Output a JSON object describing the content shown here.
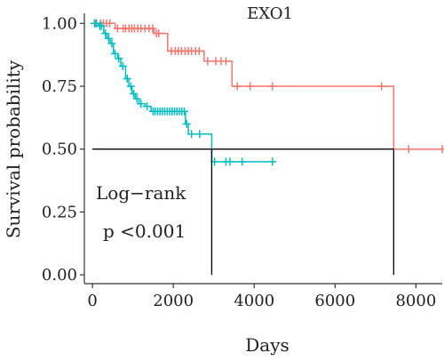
{
  "chart_data": {
    "type": "line",
    "title": "EXO1",
    "xlabel": "Days",
    "ylabel": "Survival probability",
    "xlim": [
      -200,
      8650
    ],
    "ylim": [
      -0.035,
      1.04
    ],
    "x_ticks": [
      0,
      2000,
      4000,
      6000,
      8000
    ],
    "x_tick_labels": [
      "0",
      "2000",
      "4000",
      "6000",
      "8000"
    ],
    "y_ticks": [
      0,
      0.25,
      0.5,
      0.75,
      1.0
    ],
    "y_tick_labels": [
      "0.00",
      "0.25",
      "0.50",
      "0.75",
      "1.00"
    ],
    "grid": false,
    "annotations": [
      "Log−rank",
      "p <0.001"
    ],
    "median_line": {
      "y": 0.5,
      "x_start": 0,
      "median_x": [
        2950,
        7450
      ]
    },
    "series": [
      {
        "color": "#F8766D",
        "steps": [
          [
            0,
            1.0
          ],
          [
            560,
            0.98
          ],
          [
            1520,
            0.96
          ],
          [
            1860,
            0.89
          ],
          [
            2760,
            0.85
          ],
          [
            3450,
            0.75
          ],
          [
            7450,
            0.5
          ]
        ],
        "censor_x": [
          80,
          200,
          270,
          350,
          430,
          620,
          760,
          820,
          900,
          970,
          1040,
          1120,
          1200,
          1300,
          1400,
          1490,
          1580,
          1640,
          1950,
          2050,
          2120,
          2200,
          2290,
          2370,
          2450,
          2550,
          2640,
          2850,
          3050,
          3180,
          3300,
          3580,
          3900,
          4450,
          7150,
          7820,
          8650
        ]
      },
      {
        "color": "#00BFC4",
        "steps": [
          [
            0,
            1.0
          ],
          [
            150,
            0.99
          ],
          [
            280,
            0.96
          ],
          [
            360,
            0.94
          ],
          [
            440,
            0.92
          ],
          [
            520,
            0.88
          ],
          [
            620,
            0.86
          ],
          [
            700,
            0.83
          ],
          [
            820,
            0.78
          ],
          [
            900,
            0.75
          ],
          [
            980,
            0.72
          ],
          [
            1060,
            0.7
          ],
          [
            1150,
            0.68
          ],
          [
            1300,
            0.67
          ],
          [
            1450,
            0.65
          ],
          [
            2300,
            0.6
          ],
          [
            2370,
            0.56
          ],
          [
            2950,
            0.45
          ]
        ],
        "censor_x": [
          50,
          100,
          180,
          220,
          320,
          400,
          480,
          560,
          650,
          750,
          860,
          950,
          1020,
          1100,
          1200,
          1350,
          1500,
          1550,
          1610,
          1670,
          1730,
          1790,
          1850,
          1910,
          1970,
          2030,
          2090,
          2150,
          2210,
          2270,
          2330,
          2450,
          2650,
          3020,
          3300,
          3400,
          3700,
          4450
        ]
      }
    ]
  }
}
